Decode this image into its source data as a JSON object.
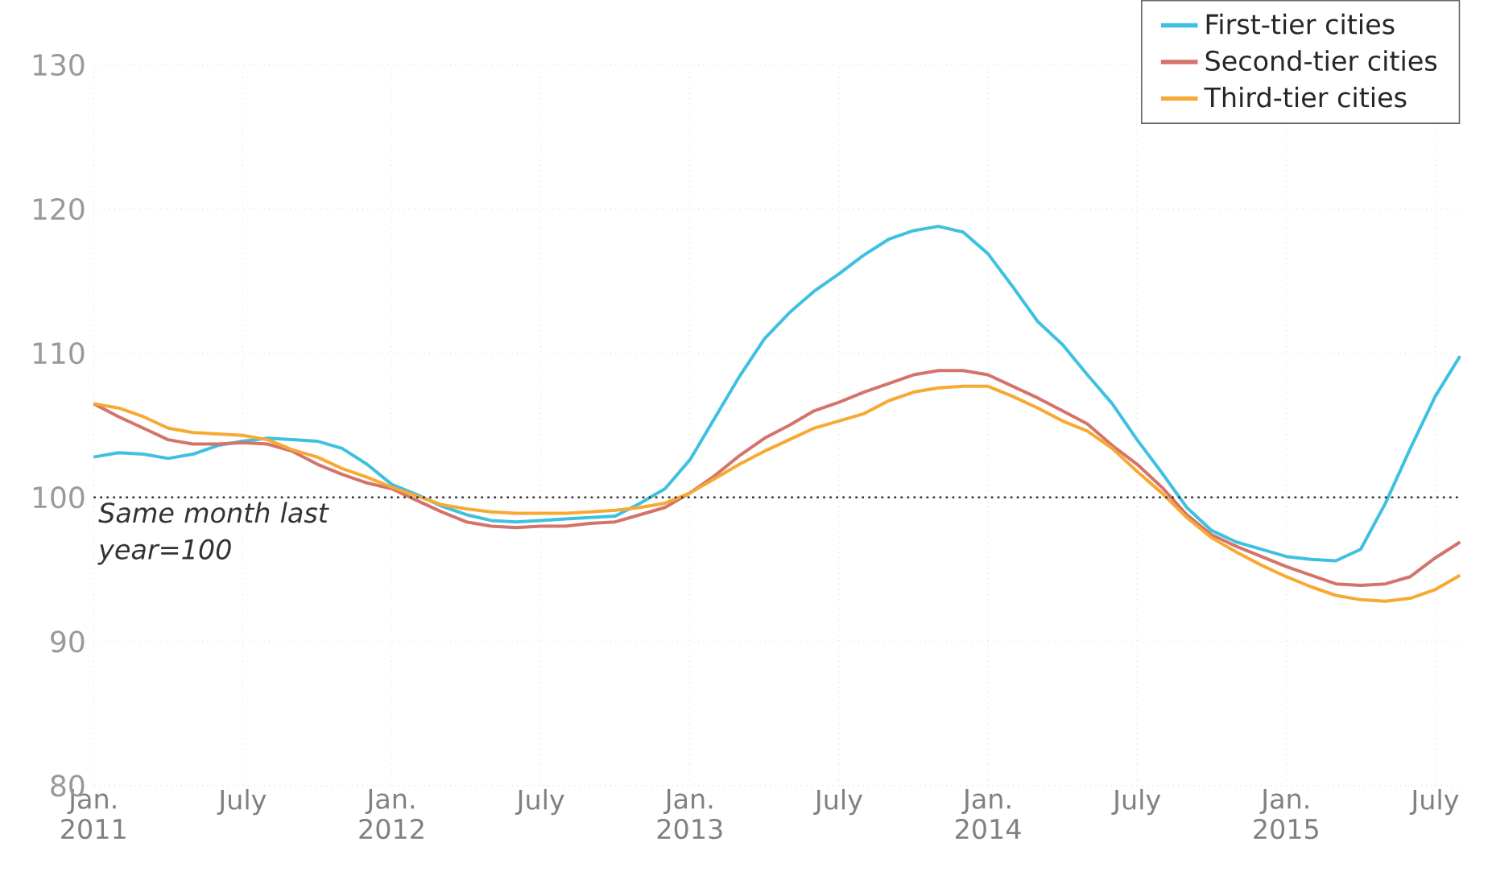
{
  "chart_data": {
    "type": "line",
    "x": [
      "2011-01",
      "2011-02",
      "2011-03",
      "2011-04",
      "2011-05",
      "2011-06",
      "2011-07",
      "2011-08",
      "2011-09",
      "2011-10",
      "2011-11",
      "2011-12",
      "2012-01",
      "2012-02",
      "2012-03",
      "2012-04",
      "2012-05",
      "2012-06",
      "2012-07",
      "2012-08",
      "2012-09",
      "2012-10",
      "2012-11",
      "2012-12",
      "2013-01",
      "2013-02",
      "2013-03",
      "2013-04",
      "2013-05",
      "2013-06",
      "2013-07",
      "2013-08",
      "2013-09",
      "2013-10",
      "2013-11",
      "2013-12",
      "2014-01",
      "2014-02",
      "2014-03",
      "2014-04",
      "2014-05",
      "2014-06",
      "2014-07",
      "2014-08",
      "2014-09",
      "2014-10",
      "2014-11",
      "2014-12",
      "2015-01",
      "2015-02",
      "2015-03",
      "2015-04",
      "2015-05",
      "2015-06",
      "2015-07",
      "2015-08"
    ],
    "series": [
      {
        "name": "First-tier cities",
        "color": "#3ec1e0",
        "values": [
          102.8,
          103.1,
          103.0,
          102.7,
          103.0,
          103.6,
          103.9,
          104.1,
          104.0,
          103.9,
          103.4,
          102.3,
          100.9,
          100.2,
          99.4,
          98.8,
          98.4,
          98.3,
          98.4,
          98.5,
          98.6,
          98.7,
          99.6,
          100.6,
          102.6,
          105.5,
          108.4,
          111.0,
          112.8,
          114.3,
          115.5,
          116.8,
          117.9,
          118.5,
          118.8,
          118.4,
          116.9,
          114.6,
          112.2,
          110.6,
          108.5,
          106.5,
          104.0,
          101.7,
          99.3,
          97.7,
          96.9,
          96.4,
          95.9,
          95.7,
          95.6,
          96.4,
          99.6,
          103.4,
          107.0,
          109.8
        ]
      },
      {
        "name": "Second-tier cities",
        "color": "#d4736a",
        "values": [
          106.5,
          105.6,
          104.8,
          104.0,
          103.7,
          103.7,
          103.8,
          103.7,
          103.2,
          102.3,
          101.6,
          101.0,
          100.6,
          99.8,
          99.0,
          98.3,
          98.0,
          97.9,
          98.0,
          98.0,
          98.2,
          98.3,
          98.8,
          99.3,
          100.3,
          101.5,
          102.9,
          104.1,
          105.0,
          106.0,
          106.6,
          107.3,
          107.9,
          108.5,
          108.8,
          108.8,
          108.5,
          107.7,
          106.9,
          106.0,
          105.1,
          103.6,
          102.3,
          100.7,
          98.8,
          97.4,
          96.6,
          95.9,
          95.2,
          94.6,
          94.0,
          93.9,
          94.0,
          94.5,
          95.8,
          96.9
        ]
      },
      {
        "name": "Third-tier cities",
        "color": "#f7a934",
        "values": [
          106.5,
          106.2,
          105.6,
          104.8,
          104.5,
          104.4,
          104.3,
          104.0,
          103.3,
          102.8,
          102.0,
          101.4,
          100.7,
          100.1,
          99.5,
          99.2,
          99.0,
          98.9,
          98.9,
          98.9,
          99.0,
          99.1,
          99.3,
          99.6,
          100.3,
          101.3,
          102.3,
          103.2,
          104.0,
          104.8,
          105.3,
          105.8,
          106.7,
          107.3,
          107.6,
          107.7,
          107.7,
          107.0,
          106.2,
          105.3,
          104.6,
          103.4,
          101.8,
          100.3,
          98.6,
          97.2,
          96.2,
          95.3,
          94.5,
          93.8,
          93.2,
          92.9,
          92.8,
          93.0,
          93.6,
          94.6
        ]
      }
    ],
    "xlim": [
      "2011-01",
      "2015-08"
    ],
    "xticks": [
      {
        "value": "2011-01",
        "label": "Jan. 2011"
      },
      {
        "value": "2011-07",
        "label": "July"
      },
      {
        "value": "2012-01",
        "label": "Jan. 2012"
      },
      {
        "value": "2012-07",
        "label": "July"
      },
      {
        "value": "2013-01",
        "label": "Jan. 2013"
      },
      {
        "value": "2013-07",
        "label": "July"
      },
      {
        "value": "2014-01",
        "label": "Jan. 2014"
      },
      {
        "value": "2014-07",
        "label": "July"
      },
      {
        "value": "2015-01",
        "label": "Jan. 2015"
      },
      {
        "value": "2015-07",
        "label": "July"
      }
    ],
    "ylim": [
      80,
      130
    ],
    "yticks": [
      80,
      90,
      100,
      110,
      120,
      130
    ],
    "ref_lines": [
      {
        "axis": "y",
        "value": 100,
        "label": "Same month last year=100",
        "color": "#333333",
        "line_style": "dotted"
      }
    ],
    "grid": true,
    "legend": "top right"
  }
}
